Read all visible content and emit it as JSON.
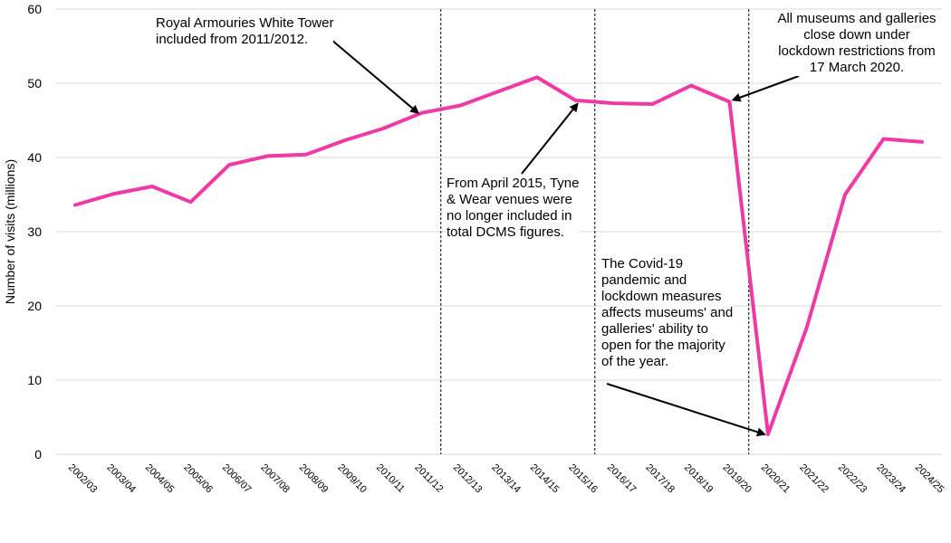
{
  "chart_data": {
    "type": "line",
    "title": "",
    "xlabel": "",
    "ylabel": "Number of visits (millions)",
    "ylim": [
      0,
      60
    ],
    "yticks": [
      0,
      10,
      20,
      30,
      40,
      50,
      60
    ],
    "grid": "horizontal",
    "legend": "none",
    "line_color": "#ee3aa4",
    "categories": [
      "2002/03",
      "2003/04",
      "2004/05",
      "2005/06",
      "2006/07",
      "2007/08",
      "2008/09",
      "2009/10",
      "2010/11",
      "2011/12",
      "2012/13",
      "2013/14",
      "2014/15",
      "2015/16",
      "2016/17",
      "2017/18",
      "2018/19",
      "2019/20",
      "2020/21",
      "2021/22",
      "2022/23",
      "2023/24",
      "2024/25"
    ],
    "series": [
      {
        "values": [
          33.6,
          35.1,
          36.1,
          34.0,
          39.0,
          40.2,
          40.4,
          42.3,
          43.9,
          46.0,
          47.0,
          48.9,
          50.8,
          47.7,
          47.3,
          47.2,
          49.7,
          47.5,
          2.7,
          17.0,
          35.0,
          42.5,
          42.1
        ]
      }
    ],
    "annotations": [
      {
        "id": "white-tower",
        "text": "Royal Armouries White Tower\nincluded from 2011/2012.",
        "target_category": "2011/12",
        "target_value": 46.0
      },
      {
        "id": "tyne-wear",
        "text": "From April 2015, Tyne\n& Wear venues were\nno longer included in\ntotal DCMS figures.",
        "target_category": "2015/16",
        "target_value": 47.7
      },
      {
        "id": "close-down",
        "text": "All museums and galleries\nclose down under\nlockdown restrictions from\n17 March 2020.",
        "target_category": "2019/20",
        "target_value": 47.5
      },
      {
        "id": "covid",
        "text": "The Covid-19\npandemic and\nlockdown measures\naffects museums' and\ngalleries' ability to\nopen for the majority\nof the year.",
        "target_category": "2020/21",
        "target_value": 2.7
      }
    ],
    "reference_lines_between": [
      [
        "2011/12",
        "2012/13"
      ],
      [
        "2015/16",
        "2016/17"
      ],
      [
        "2019/20",
        "2020/21"
      ]
    ]
  }
}
